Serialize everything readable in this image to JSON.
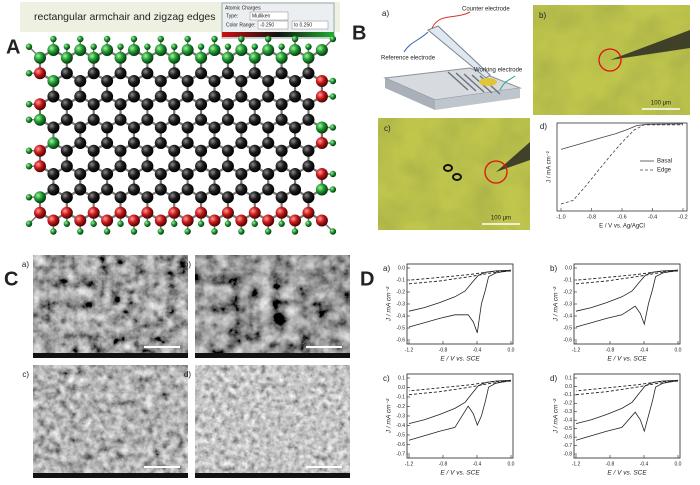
{
  "panel_a": {
    "label": "A",
    "title": "rectangular armchair and zigzag edges",
    "dialog": {
      "heading": "Atomic Charges",
      "type_label": "Type:",
      "type_value": "Mulliken",
      "range_label": "Color Range:",
      "range_min": "-0.250",
      "range_max": "to 0.250"
    }
  },
  "panel_b": {
    "label": "B",
    "schematic": {
      "label": "a)",
      "counter": "Counter electrode",
      "reference": "Reference electrode",
      "working": "Working electrode"
    },
    "micrograph_b": {
      "label": "b)",
      "scale": "100 μm"
    },
    "micrograph_c": {
      "label": "c)",
      "scale": "100 μm"
    },
    "plot": {
      "label": "d)",
      "y_label": "J / mA cm⁻²",
      "x_label": "E / V vs. Ag/AgCl",
      "x_ticks": [
        "-1.0",
        "-0.8",
        "-0.6",
        "-0.4",
        "-0.2"
      ],
      "legend": [
        "Basal",
        "Edge"
      ]
    }
  },
  "panel_c": {
    "label": "C",
    "images": [
      "a)",
      "b)",
      "c)",
      "d)"
    ]
  },
  "panel_d": {
    "label": "D",
    "plots": [
      {
        "label": "a)",
        "y_ticks": [
          "0.0",
          "-0.1",
          "-0.2",
          "-0.3",
          "-0.4",
          "-0.5",
          "-0.6"
        ],
        "x_ticks": [
          "-1.2",
          "-0.8",
          "-0.4",
          "0.0"
        ],
        "y_label": "J / mA cm⁻²",
        "x_label": "E / V vs. SCE"
      },
      {
        "label": "b)",
        "y_ticks": [
          "0.0",
          "-0.1",
          "-0.2",
          "-0.3",
          "-0.4",
          "-0.5",
          "-0.6"
        ],
        "x_ticks": [
          "-1.2",
          "-0.8",
          "-0.4",
          "0.0"
        ],
        "y_label": "J / mA cm⁻²",
        "x_label": "E / V vs. SCE"
      },
      {
        "label": "c)",
        "y_ticks": [
          "0.1",
          "0.0",
          "-0.1",
          "-0.2",
          "-0.3",
          "-0.4",
          "-0.5",
          "-0.6",
          "-0.7"
        ],
        "x_ticks": [
          "-1.2",
          "-0.8",
          "-0.4",
          "0.0"
        ],
        "y_label": "J / mA cm⁻²",
        "x_label": "E / V vs. SCE"
      },
      {
        "label": "d)",
        "y_ticks": [
          "0.1",
          "0.0",
          "-0.1",
          "-0.2",
          "-0.3",
          "-0.4",
          "-0.5",
          "-0.6",
          "-0.7",
          "-0.8"
        ],
        "x_ticks": [
          "-1.2",
          "-0.8",
          "-0.4",
          "0.0"
        ],
        "y_label": "J / mA cm⁻²",
        "x_label": "E / V vs. SCE"
      }
    ]
  }
}
